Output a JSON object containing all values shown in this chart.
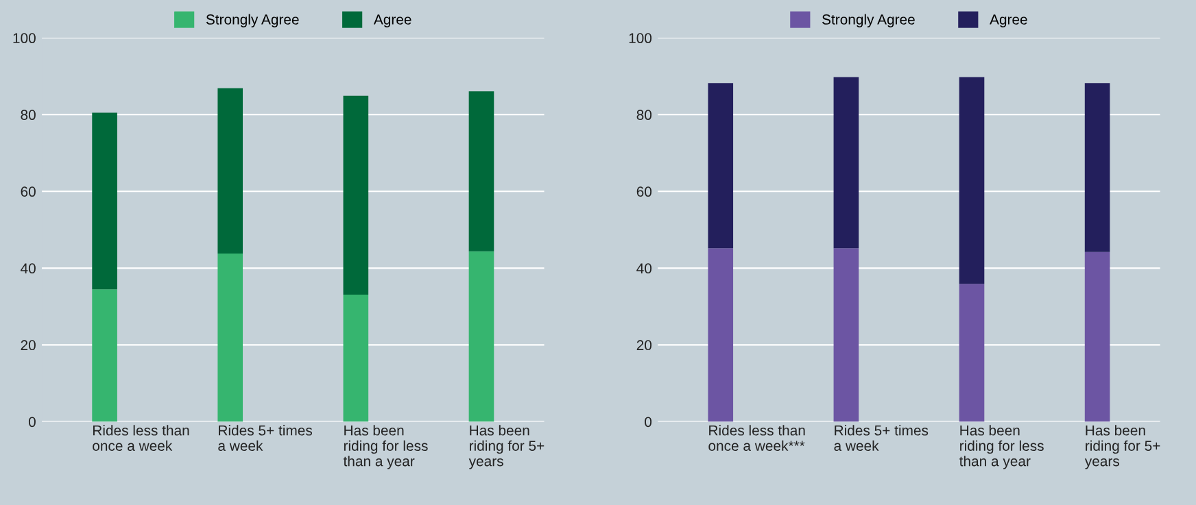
{
  "chart_data": [
    {
      "type": "bar",
      "stacked": true,
      "categories": [
        "Rides less than\nonce a week",
        "Rides 5+ times\na week",
        "Has been\nriding for less\nthan a year",
        "Has been\nriding for 5+\nyears"
      ],
      "series": [
        {
          "name": "Strongly Agree",
          "color": "#36b56f",
          "values": [
            34.5,
            43.8,
            33.1,
            44.4
          ]
        },
        {
          "name": "Agree",
          "color": "#00693a",
          "values": [
            46.0,
            43.1,
            51.8,
            41.7
          ]
        }
      ],
      "ylim": [
        0,
        100
      ],
      "yticks": [
        0,
        20,
        40,
        60,
        80,
        100
      ],
      "grid": "y",
      "legend": "top"
    },
    {
      "type": "bar",
      "stacked": true,
      "categories": [
        "Rides less than\nonce a week***",
        "Rides 5+ times\na week",
        "Has been\nriding for less\nthan a year",
        "Has been\nriding for 5+\nyears"
      ],
      "series": [
        {
          "name": "Strongly Agree",
          "color": "#6c55a3",
          "values": [
            45.2,
            45.2,
            35.9,
            44.2
          ]
        },
        {
          "name": "Agree",
          "color": "#231f5c",
          "values": [
            43.0,
            44.6,
            53.9,
            44.0
          ]
        }
      ],
      "ylim": [
        0,
        100
      ],
      "yticks": [
        0,
        20,
        40,
        60,
        80,
        100
      ],
      "grid": "y",
      "legend": "top"
    }
  ]
}
